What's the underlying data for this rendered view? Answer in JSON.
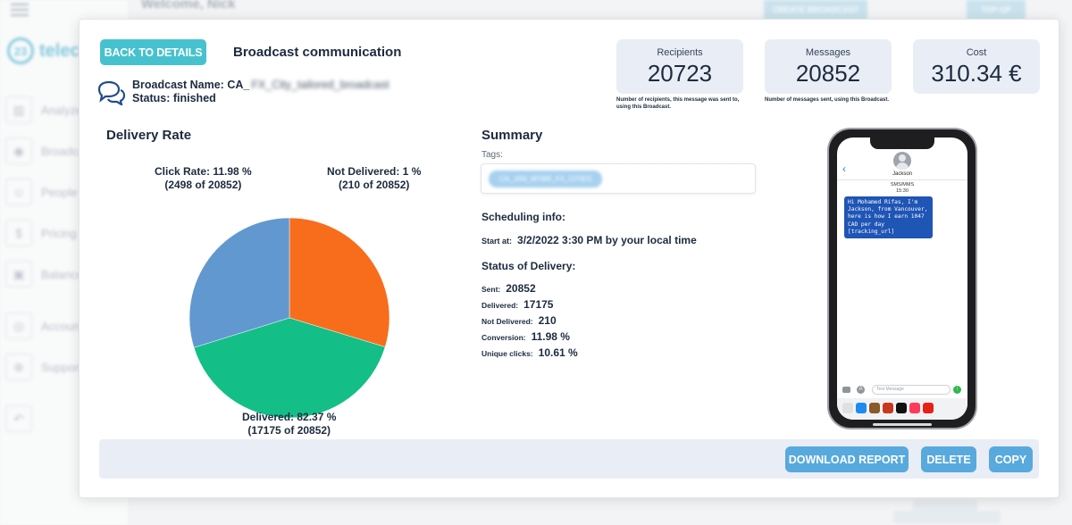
{
  "background": {
    "welcome": "Welcome, Nick",
    "brand": "telecom",
    "brand_number": "23",
    "nav": [
      "Analyze",
      "Broadcast",
      "People",
      "Pricing",
      "Balance",
      "Account",
      "Support"
    ],
    "top_buttons": [
      "CREATE BROADCAST",
      "TOP-UP"
    ]
  },
  "modal": {
    "back_button": "BACK TO DETAILS",
    "title": "Broadcast communication",
    "broadcast_name_label": "Broadcast Name:",
    "broadcast_name_prefix": "CA_",
    "broadcast_name_blurred": "FX_City_tailored_broadcast",
    "status_label": "Status:",
    "status_value": "finished",
    "stats": [
      {
        "label": "Recipients",
        "value": "20723",
        "note": "Number of recipients, this message was sent to, using this Broadcast."
      },
      {
        "label": "Messages",
        "value": "20852",
        "note": "Number of messages sent, using this Broadcast."
      },
      {
        "label": "Cost",
        "value": "310.34 €",
        "note": ""
      }
    ]
  },
  "delivery_rate": {
    "title": "Delivery Rate",
    "labels": {
      "click": [
        "Click Rate: 11.98 %",
        "(2498 of 20852)"
      ],
      "not_delivered": [
        "Not Delivered: 1 %",
        "(210 of 20852)"
      ],
      "delivered": [
        "Delivered: 82.37 %",
        "(17175 of 20852)"
      ]
    }
  },
  "chart_data": {
    "type": "pie",
    "title": "Delivery Rate",
    "slices": [
      {
        "label": "Not Delivered",
        "value": 210,
        "color": "#f76d1c"
      },
      {
        "label": "Delivered",
        "value": 17175,
        "color": "#14be87"
      },
      {
        "label": "Click Rate",
        "value": 2498,
        "color": "#6198cf"
      }
    ]
  },
  "summary": {
    "title": "Summary",
    "tags_label": "Tags:",
    "tag": "CA_JAN_MYBR_FX_CITIES",
    "scheduling_title": "Scheduling info:",
    "start_label": "Start at:",
    "start_value": "3/2/2022 3:30 PM by your local time",
    "status_title": "Status of Delivery:",
    "rows": [
      {
        "label": "Sent:",
        "value": "20852"
      },
      {
        "label": "Delivered:",
        "value": "17175"
      },
      {
        "label": "Not Delivered:",
        "value": "210"
      },
      {
        "label": "Conversion:",
        "value": "11.98 %"
      },
      {
        "label": "Unique clicks:",
        "value": "10.61 %"
      }
    ]
  },
  "phone": {
    "contact": "Jackson",
    "sms_type": "SMS/MMS",
    "time": "15:30",
    "message": "Hi Mohamed Rifas, I'm Jackson, from Vancouver, here is how I earn 1047 CAD per day [tracking_url]",
    "input_placeholder": "Text Message",
    "app_colors": [
      "#e0e0e0",
      "#1e8bf0",
      "#8a5a2b",
      "#c8381e",
      "#111111",
      "#ff3b5c",
      "#e62117"
    ]
  },
  "footer": {
    "download": "DOWNLOAD REPORT",
    "delete": "DELETE",
    "copy": "COPY"
  }
}
